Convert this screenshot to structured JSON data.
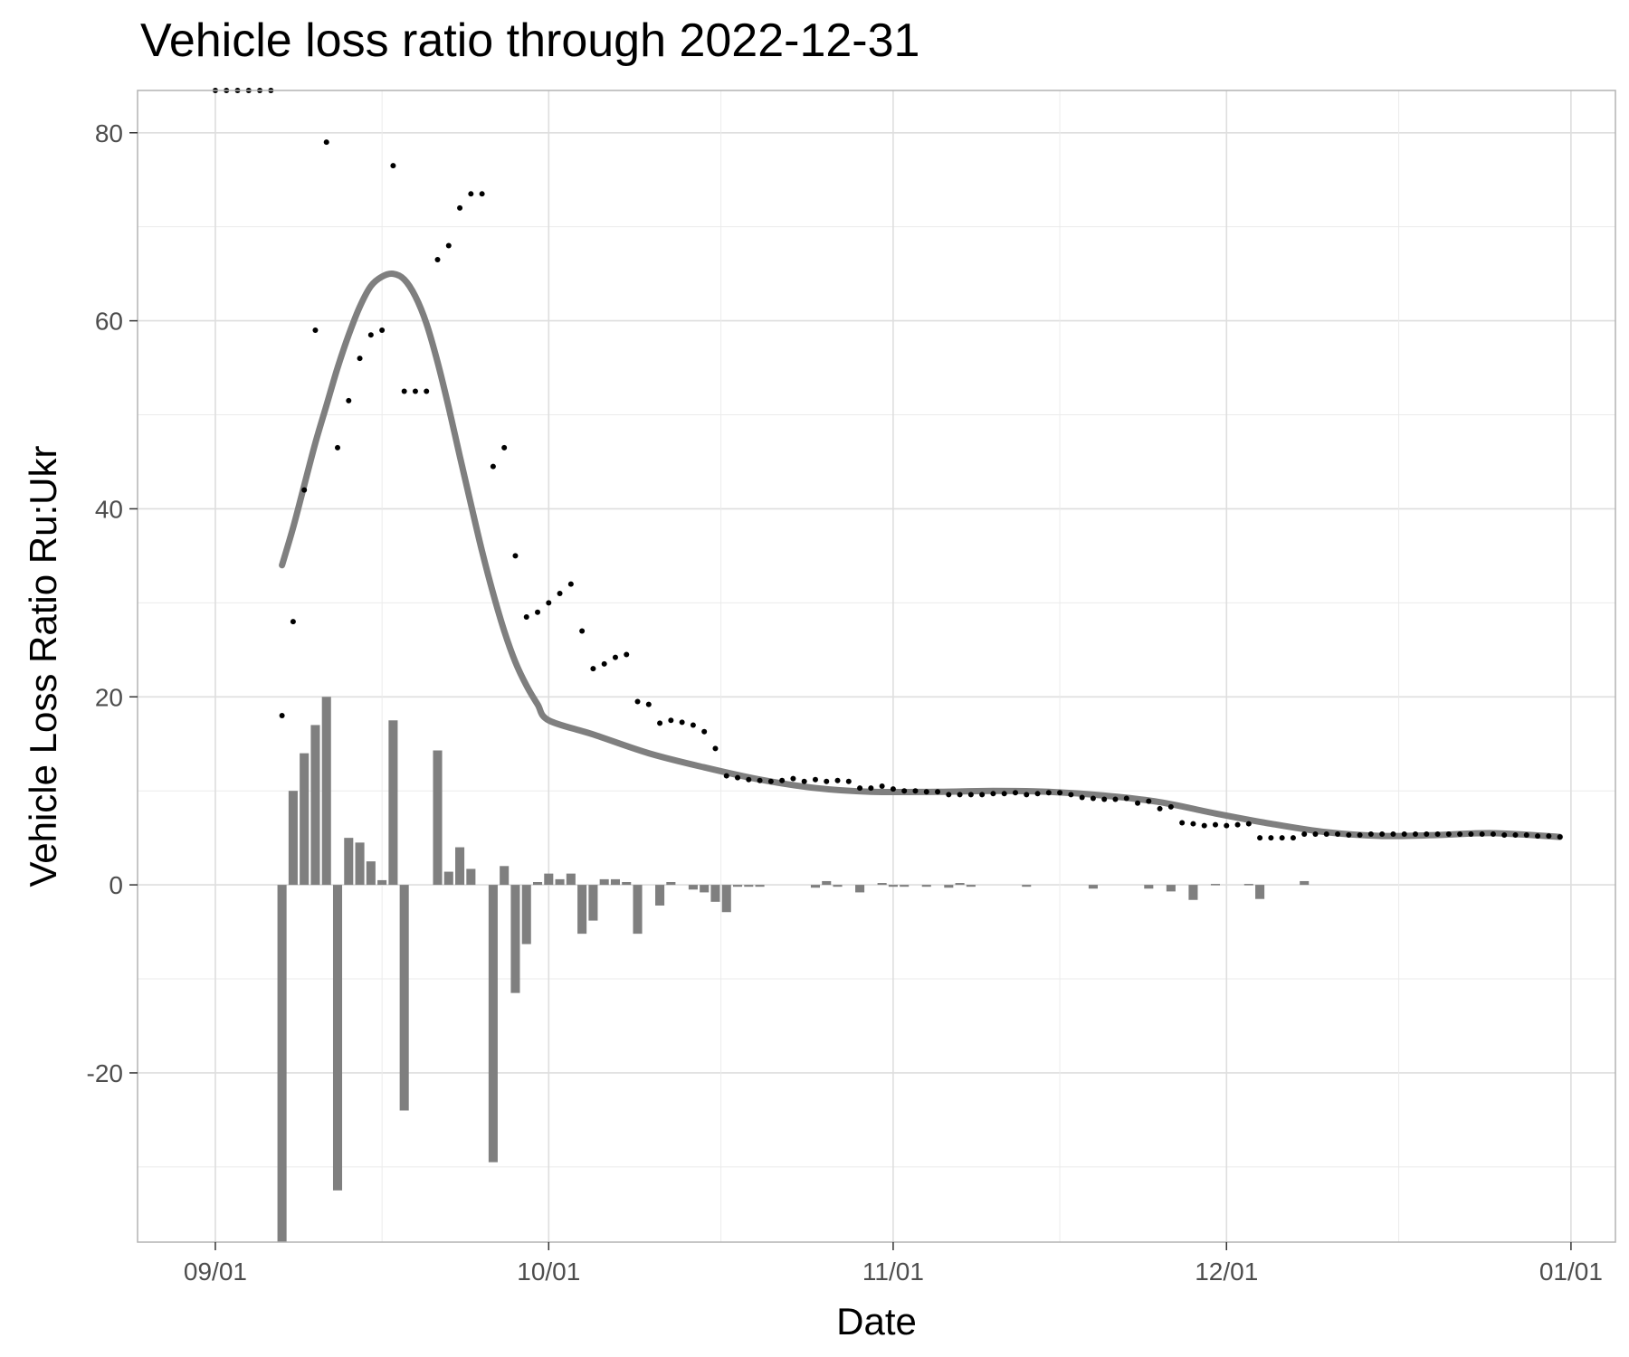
{
  "chart_data": {
    "type": "line",
    "title": "Vehicle loss ratio through 2022-12-31",
    "xlabel": "Date",
    "ylabel": "Vehicle Loss Ratio Ru:Ukr",
    "x_axis": {
      "type": "date",
      "range": [
        "2022-08-25",
        "2023-01-05"
      ],
      "ticks": [
        {
          "date": "2022-09-01",
          "label": "09/01"
        },
        {
          "date": "2022-10-01",
          "label": "10/01"
        },
        {
          "date": "2022-11-01",
          "label": "11/01"
        },
        {
          "date": "2022-12-01",
          "label": "12/01"
        },
        {
          "date": "2023-01-01",
          "label": "01/01"
        }
      ]
    },
    "y_axis": {
      "range": [
        -38,
        84.5
      ],
      "ticks": [
        -20,
        0,
        20,
        40,
        60,
        80
      ]
    },
    "grid": true,
    "series": [
      {
        "type": "scatter",
        "color": "#000000",
        "points": [
          [
            "2022-09-01",
            84.5
          ],
          [
            "2022-09-02",
            84.5
          ],
          [
            "2022-09-03",
            84.5
          ],
          [
            "2022-09-04",
            84.5
          ],
          [
            "2022-09-05",
            84.5
          ],
          [
            "2022-09-06",
            84.5
          ],
          [
            "2022-09-07",
            18
          ],
          [
            "2022-09-08",
            28
          ],
          [
            "2022-09-09",
            42
          ],
          [
            "2022-09-10",
            59
          ],
          [
            "2022-09-11",
            79
          ],
          [
            "2022-09-12",
            46.5
          ],
          [
            "2022-09-13",
            51.5
          ],
          [
            "2022-09-14",
            56
          ],
          [
            "2022-09-15",
            58.5
          ],
          [
            "2022-09-16",
            59
          ],
          [
            "2022-09-17",
            76.5
          ],
          [
            "2022-09-18",
            52.5
          ],
          [
            "2022-09-19",
            52.5
          ],
          [
            "2022-09-20",
            52.5
          ],
          [
            "2022-09-21",
            66.5
          ],
          [
            "2022-09-22",
            68
          ],
          [
            "2022-09-23",
            72
          ],
          [
            "2022-09-24",
            73.5
          ],
          [
            "2022-09-25",
            73.5
          ],
          [
            "2022-09-26",
            44.5
          ],
          [
            "2022-09-27",
            46.5
          ],
          [
            "2022-09-28",
            35
          ],
          [
            "2022-09-29",
            28.5
          ],
          [
            "2022-09-30",
            29
          ],
          [
            "2022-10-01",
            30
          ],
          [
            "2022-10-02",
            31
          ],
          [
            "2022-10-03",
            32
          ],
          [
            "2022-10-04",
            27
          ],
          [
            "2022-10-05",
            23
          ],
          [
            "2022-10-06",
            23.5
          ],
          [
            "2022-10-07",
            24.2
          ],
          [
            "2022-10-08",
            24.5
          ],
          [
            "2022-10-09",
            19.5
          ],
          [
            "2022-10-10",
            19.2
          ],
          [
            "2022-10-11",
            17.2
          ],
          [
            "2022-10-12",
            17.5
          ],
          [
            "2022-10-13",
            17.3
          ],
          [
            "2022-10-14",
            17
          ],
          [
            "2022-10-15",
            16.3
          ],
          [
            "2022-10-16",
            14.5
          ],
          [
            "2022-10-17",
            11.6
          ],
          [
            "2022-10-18",
            11.4
          ],
          [
            "2022-10-19",
            11.2
          ],
          [
            "2022-10-20",
            11.1
          ],
          [
            "2022-10-21",
            11
          ],
          [
            "2022-10-22",
            11.1
          ],
          [
            "2022-10-23",
            11.3
          ],
          [
            "2022-10-24",
            11
          ],
          [
            "2022-10-25",
            11.2
          ],
          [
            "2022-10-26",
            11
          ],
          [
            "2022-10-27",
            11.1
          ],
          [
            "2022-10-28",
            11
          ],
          [
            "2022-10-29",
            10.3
          ],
          [
            "2022-10-30",
            10.3
          ],
          [
            "2022-10-31",
            10.5
          ],
          [
            "2022-11-01",
            10.2
          ],
          [
            "2022-11-02",
            10
          ],
          [
            "2022-11-03",
            10
          ],
          [
            "2022-11-04",
            9.9
          ],
          [
            "2022-11-05",
            9.9
          ],
          [
            "2022-11-06",
            9.6
          ],
          [
            "2022-11-07",
            9.6
          ],
          [
            "2022-11-08",
            9.6
          ],
          [
            "2022-11-09",
            9.6
          ],
          [
            "2022-11-10",
            9.7
          ],
          [
            "2022-11-11",
            9.7
          ],
          [
            "2022-11-12",
            9.8
          ],
          [
            "2022-11-13",
            9.6
          ],
          [
            "2022-11-14",
            9.7
          ],
          [
            "2022-11-15",
            9.8
          ],
          [
            "2022-11-16",
            9.8
          ],
          [
            "2022-11-17",
            9.6
          ],
          [
            "2022-11-18",
            9.3
          ],
          [
            "2022-11-19",
            9.2
          ],
          [
            "2022-11-20",
            9.1
          ],
          [
            "2022-11-21",
            9.1
          ],
          [
            "2022-11-22",
            9.2
          ],
          [
            "2022-11-23",
            8.7
          ],
          [
            "2022-11-24",
            8.9
          ],
          [
            "2022-11-25",
            8.1
          ],
          [
            "2022-11-26",
            8.3
          ],
          [
            "2022-11-27",
            6.6
          ],
          [
            "2022-11-28",
            6.5
          ],
          [
            "2022-11-29",
            6.3
          ],
          [
            "2022-11-30",
            6.4
          ],
          [
            "2022-12-01",
            6.3
          ],
          [
            "2022-12-02",
            6.4
          ],
          [
            "2022-12-03",
            6.5
          ],
          [
            "2022-12-04",
            5
          ],
          [
            "2022-12-05",
            5
          ],
          [
            "2022-12-06",
            5
          ],
          [
            "2022-12-07",
            5
          ],
          [
            "2022-12-08",
            5.4
          ],
          [
            "2022-12-09",
            5.4
          ],
          [
            "2022-12-10",
            5.4
          ],
          [
            "2022-12-11",
            5.4
          ],
          [
            "2022-12-12",
            5.3
          ],
          [
            "2022-12-13",
            5.3
          ],
          [
            "2022-12-14",
            5.4
          ],
          [
            "2022-12-15",
            5.4
          ],
          [
            "2022-12-16",
            5.4
          ],
          [
            "2022-12-17",
            5.4
          ],
          [
            "2022-12-18",
            5.4
          ],
          [
            "2022-12-19",
            5.4
          ],
          [
            "2022-12-20",
            5.4
          ],
          [
            "2022-12-21",
            5.4
          ],
          [
            "2022-12-22",
            5.4
          ],
          [
            "2022-12-23",
            5.4
          ],
          [
            "2022-12-24",
            5.4
          ],
          [
            "2022-12-25",
            5.4
          ],
          [
            "2022-12-26",
            5.3
          ],
          [
            "2022-12-27",
            5.3
          ],
          [
            "2022-12-28",
            5.3
          ],
          [
            "2022-12-29",
            5.2
          ],
          [
            "2022-12-30",
            5.2
          ],
          [
            "2022-12-31",
            5.1
          ]
        ]
      },
      {
        "type": "line",
        "color": "#7f7f7f",
        "points": [
          [
            "2022-09-07",
            34
          ],
          [
            "2022-09-08",
            38
          ],
          [
            "2022-09-09",
            42.5
          ],
          [
            "2022-09-10",
            47
          ],
          [
            "2022-09-11",
            51
          ],
          [
            "2022-09-12",
            55
          ],
          [
            "2022-09-13",
            58.5
          ],
          [
            "2022-09-14",
            61.5
          ],
          [
            "2022-09-15",
            63.7
          ],
          [
            "2022-09-16",
            64.7
          ],
          [
            "2022-09-17",
            65
          ],
          [
            "2022-09-18",
            64.4
          ],
          [
            "2022-09-19",
            62.6
          ],
          [
            "2022-09-20",
            59.7
          ],
          [
            "2022-09-21",
            55.6
          ],
          [
            "2022-09-22",
            50.8
          ],
          [
            "2022-09-23",
            45.6
          ],
          [
            "2022-09-24",
            40.5
          ],
          [
            "2022-09-25",
            35.5
          ],
          [
            "2022-09-26",
            31
          ],
          [
            "2022-09-27",
            27
          ],
          [
            "2022-09-28",
            23.7
          ],
          [
            "2022-09-29",
            21.2
          ],
          [
            "2022-09-30",
            19.2
          ],
          [
            "2022-10-01",
            17.5
          ],
          [
            "2022-10-05",
            16
          ],
          [
            "2022-10-10",
            14
          ],
          [
            "2022-10-15",
            12.5
          ],
          [
            "2022-10-20",
            11.2
          ],
          [
            "2022-10-25",
            10.3
          ],
          [
            "2022-10-30",
            9.9
          ],
          [
            "2022-11-05",
            9.9
          ],
          [
            "2022-11-10",
            10
          ],
          [
            "2022-11-15",
            9.9
          ],
          [
            "2022-11-20",
            9.5
          ],
          [
            "2022-11-25",
            8.8
          ],
          [
            "2022-11-30",
            7.6
          ],
          [
            "2022-12-05",
            6.5
          ],
          [
            "2022-12-10",
            5.6
          ],
          [
            "2022-12-15",
            5.2
          ],
          [
            "2022-12-20",
            5.3
          ],
          [
            "2022-12-25",
            5.5
          ],
          [
            "2022-12-31",
            5.1
          ]
        ]
      },
      {
        "type": "bar",
        "color": "#7f7f7f",
        "points": [
          [
            "2022-09-07",
            -38
          ],
          [
            "2022-09-08",
            10
          ],
          [
            "2022-09-09",
            14
          ],
          [
            "2022-09-10",
            17
          ],
          [
            "2022-09-11",
            20
          ],
          [
            "2022-09-12",
            -32.5
          ],
          [
            "2022-09-13",
            5
          ],
          [
            "2022-09-14",
            4.5
          ],
          [
            "2022-09-15",
            2.5
          ],
          [
            "2022-09-16",
            0.5
          ],
          [
            "2022-09-17",
            17.5
          ],
          [
            "2022-09-18",
            -24
          ],
          [
            "2022-09-21",
            14.3
          ],
          [
            "2022-09-22",
            1.4
          ],
          [
            "2022-09-23",
            4
          ],
          [
            "2022-09-24",
            1.7
          ],
          [
            "2022-09-26",
            -29.5
          ],
          [
            "2022-09-27",
            2
          ],
          [
            "2022-09-28",
            -11.5
          ],
          [
            "2022-09-29",
            -6.3
          ],
          [
            "2022-09-30",
            0.3
          ],
          [
            "2022-10-01",
            1.2
          ],
          [
            "2022-10-02",
            0.6
          ],
          [
            "2022-10-03",
            1.2
          ],
          [
            "2022-10-04",
            -5.2
          ],
          [
            "2022-10-05",
            -3.8
          ],
          [
            "2022-10-06",
            0.6
          ],
          [
            "2022-10-07",
            0.6
          ],
          [
            "2022-10-08",
            0.3
          ],
          [
            "2022-10-09",
            -5.2
          ],
          [
            "2022-10-11",
            -2.2
          ],
          [
            "2022-10-12",
            0.3
          ],
          [
            "2022-10-14",
            -0.5
          ],
          [
            "2022-10-15",
            -0.8
          ],
          [
            "2022-10-16",
            -1.8
          ],
          [
            "2022-10-17",
            -2.9
          ],
          [
            "2022-10-18",
            -0.2
          ],
          [
            "2022-10-19",
            -0.2
          ],
          [
            "2022-10-20",
            -0.2
          ],
          [
            "2022-10-25",
            -0.3
          ],
          [
            "2022-10-26",
            0.4
          ],
          [
            "2022-10-27",
            -0.2
          ],
          [
            "2022-10-29",
            -0.8
          ],
          [
            "2022-10-31",
            0.2
          ],
          [
            "2022-11-01",
            -0.2
          ],
          [
            "2022-11-02",
            -0.2
          ],
          [
            "2022-11-04",
            -0.2
          ],
          [
            "2022-11-06",
            -0.3
          ],
          [
            "2022-11-07",
            0.2
          ],
          [
            "2022-11-08",
            -0.2
          ],
          [
            "2022-11-13",
            -0.2
          ],
          [
            "2022-11-19",
            -0.4
          ],
          [
            "2022-11-24",
            -0.4
          ],
          [
            "2022-11-26",
            -0.7
          ],
          [
            "2022-11-28",
            -1.6
          ],
          [
            "2022-11-30",
            0.1
          ],
          [
            "2022-12-03",
            0.1
          ],
          [
            "2022-12-04",
            -1.5
          ],
          [
            "2022-12-08",
            0.4
          ]
        ]
      }
    ]
  }
}
